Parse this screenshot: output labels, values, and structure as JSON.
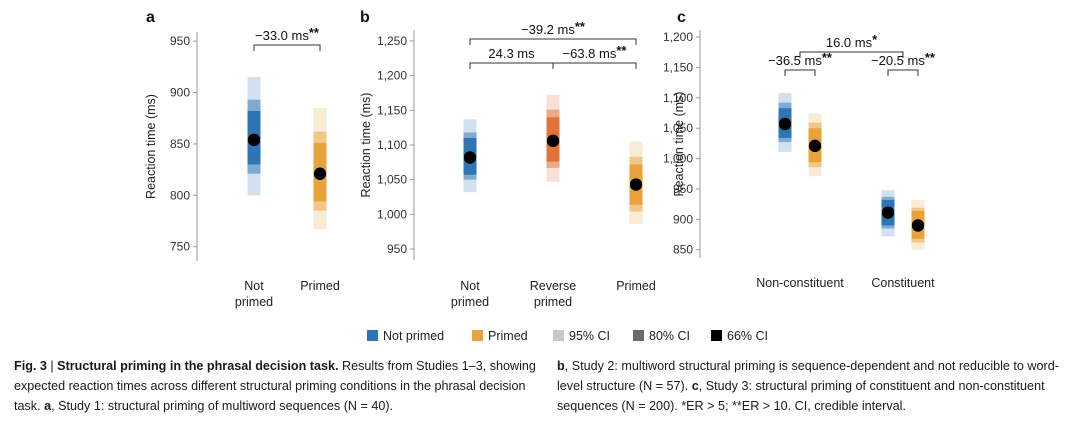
{
  "colors": {
    "not_primed": "#2e75b6",
    "primed": "#e8a33a",
    "reverse_primed": "#e0743a",
    "point": "#000000",
    "bracket": "#333333"
  },
  "legend": [
    {
      "label": "Not primed",
      "kind": "not_primed"
    },
    {
      "label": "Primed",
      "kind": "primed"
    },
    {
      "label": "95% CI",
      "kind": "ci95"
    },
    {
      "label": "80% CI",
      "kind": "ci80"
    },
    {
      "label": "66% CI",
      "kind": "ci66"
    }
  ],
  "chart_data": [
    {
      "panel": "a",
      "type": "interval",
      "ylabel": "Reaction time (ms)",
      "ylim": [
        740,
        955
      ],
      "yticks": [
        750,
        800,
        850,
        900,
        950
      ],
      "ytick_labels": [
        "750",
        "800",
        "850",
        "900",
        "950"
      ],
      "categories": [
        "Not\nprimed",
        "Primed"
      ],
      "points": [
        {
          "category": 0,
          "color": "not_primed",
          "mean": 854,
          "ci95": [
            800,
            915
          ],
          "ci80": [
            821,
            893
          ],
          "ci66": [
            830,
            882
          ]
        },
        {
          "category": 1,
          "color": "primed",
          "mean": 821,
          "ci95": [
            767,
            885
          ],
          "ci80": [
            785,
            862
          ],
          "ci66": [
            794,
            851
          ]
        }
      ],
      "brackets": [
        {
          "from": 0,
          "to": 1,
          "level": 0,
          "label": "−33.0 ms",
          "stars": "**"
        }
      ]
    },
    {
      "panel": "b",
      "type": "interval",
      "ylabel": "Reaction time (ms)",
      "ylim": [
        940,
        1260
      ],
      "yticks": [
        950,
        1000,
        1050,
        1100,
        1150,
        1200,
        1250
      ],
      "ytick_labels": [
        "950",
        "1,000",
        "1,050",
        "1,100",
        "1,150",
        "1,200",
        "1,250"
      ],
      "categories": [
        "Not\nprimed",
        "Reverse\nprimed",
        "Primed"
      ],
      "points": [
        {
          "category": 0,
          "color": "not_primed",
          "mean": 1082,
          "ci95": [
            1032,
            1137
          ],
          "ci80": [
            1050,
            1118
          ],
          "ci66": [
            1057,
            1110
          ]
        },
        {
          "category": 1,
          "color": "reverse_primed",
          "mean": 1106,
          "ci95": [
            1047,
            1172
          ],
          "ci80": [
            1067,
            1151
          ],
          "ci66": [
            1076,
            1140
          ]
        },
        {
          "category": 2,
          "color": "primed",
          "mean": 1043,
          "ci95": [
            986,
            1105
          ],
          "ci80": [
            1004,
            1083
          ],
          "ci66": [
            1014,
            1072
          ]
        }
      ],
      "brackets": [
        {
          "from": 0,
          "to": 1,
          "level": 0,
          "label": "24.3 ms",
          "stars": ""
        },
        {
          "from": 1,
          "to": 2,
          "level": 0,
          "label": "−63.8 ms",
          "stars": "**"
        },
        {
          "from": 0,
          "to": 2,
          "level": 1,
          "label": "−39.2 ms",
          "stars": "**"
        }
      ]
    },
    {
      "panel": "c",
      "type": "interval",
      "ylabel": "Reaction time (ms)",
      "ylim": [
        843,
        1205
      ],
      "yticks": [
        850,
        900,
        950,
        1000,
        1050,
        1100,
        1150,
        1200
      ],
      "ytick_labels": [
        "850",
        "900",
        "950",
        "1,000",
        "1,050",
        "1,100",
        "1,150",
        "1,200"
      ],
      "categories": [
        "Non-constituent",
        "Constituent"
      ],
      "points": [
        {
          "category": 0,
          "offset": -1,
          "color": "not_primed",
          "mean": 1057,
          "ci95": [
            1011,
            1108
          ],
          "ci80": [
            1027,
            1092
          ],
          "ci66": [
            1034,
            1083
          ]
        },
        {
          "category": 0,
          "offset": 1,
          "color": "primed",
          "mean": 1021,
          "ci95": [
            971,
            1074
          ],
          "ci80": [
            986,
            1059
          ],
          "ci66": [
            994,
            1050
          ]
        },
        {
          "category": 1,
          "offset": -1,
          "color": "not_primed",
          "mean": 911,
          "ci95": [
            872,
            948
          ],
          "ci80": [
            885,
            937
          ],
          "ci66": [
            890,
            932
          ]
        },
        {
          "category": 1,
          "offset": 1,
          "color": "primed",
          "mean": 890,
          "ci95": [
            850,
            932
          ],
          "ci80": [
            862,
            919
          ],
          "ci66": [
            868,
            914
          ]
        }
      ],
      "brackets": [
        {
          "category": 0,
          "level": 0,
          "label": "−36.5 ms",
          "stars": "**"
        },
        {
          "category": 1,
          "level": 0,
          "label": "−20.5 ms",
          "stars": "**"
        },
        {
          "from_cat": 0,
          "to_cat": 1,
          "level": 1,
          "label": "16.0 ms",
          "stars": "*"
        }
      ]
    }
  ],
  "caption": {
    "fig_label": "Fig. 3",
    "sep": " | ",
    "title": "Structural priming in the phrasal decision task.",
    "left_text": " Results from Studies 1–3, showing expected reaction times across different structural priming conditions in the phrasal decision task. ",
    "a_label": "a",
    "a_text": ", Study 1: structural priming of multiword sequences (N = 40).",
    "b_label": "b",
    "b_text": ", Study 2: multiword structural priming is sequence-dependent and not reducible to word-level structure (N = 57). ",
    "c_label": "c",
    "c_text": ", Study 3: structural priming of constituent and non-constituent sequences (N = 200). *ER > 5; **ER > 10. CI, credible interval."
  }
}
